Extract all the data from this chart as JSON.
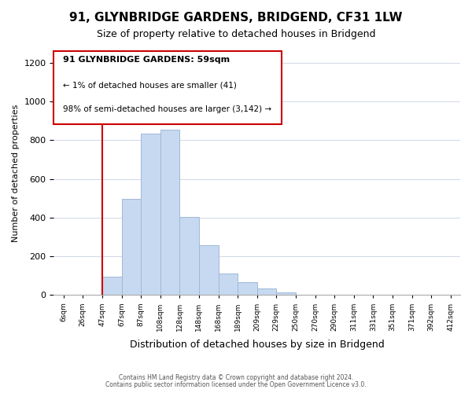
{
  "title": "91, GLYNBRIDGE GARDENS, BRIDGEND, CF31 1LW",
  "subtitle": "Size of property relative to detached houses in Bridgend",
  "xlabel": "Distribution of detached houses by size in Bridgend",
  "ylabel": "Number of detached properties",
  "bin_labels": [
    "6sqm",
    "26sqm",
    "47sqm",
    "67sqm",
    "87sqm",
    "108sqm",
    "128sqm",
    "148sqm",
    "168sqm",
    "189sqm",
    "209sqm",
    "229sqm",
    "250sqm",
    "270sqm",
    "290sqm",
    "311sqm",
    "331sqm",
    "351sqm",
    "371sqm",
    "392sqm",
    "412sqm"
  ],
  "bar_values": [
    0,
    0,
    97,
    497,
    835,
    855,
    405,
    258,
    113,
    68,
    33,
    13,
    0,
    0,
    0,
    0,
    0,
    0,
    0,
    0
  ],
  "bar_color": "#c6d9f0",
  "bar_edge_color": "#a0b8d8",
  "ylim": [
    0,
    1260
  ],
  "yticks": [
    0,
    200,
    400,
    600,
    800,
    1000,
    1200
  ],
  "property_line_x": 2.0,
  "annotation_title": "91 GLYNBRIDGE GARDENS: 59sqm",
  "annotation_line1": "← 1% of detached houses are smaller (41)",
  "annotation_line2": "98% of semi-detached houses are larger (3,142) →",
  "annotation_box_color": "#ffffff",
  "annotation_box_edge": "#cc0000",
  "vline_color": "#cc0000",
  "footer1": "Contains HM Land Registry data © Crown copyright and database right 2024.",
  "footer2": "Contains public sector information licensed under the Open Government Licence v3.0.",
  "background_color": "#ffffff",
  "grid_color": "#d0d8e8"
}
